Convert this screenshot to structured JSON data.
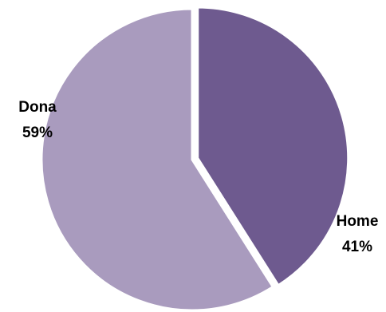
{
  "chart_data": {
    "type": "pie",
    "categories": [
      "Home",
      "Dona"
    ],
    "values": [
      41,
      59
    ],
    "value_labels": [
      "41%",
      "59%"
    ],
    "colors": [
      "#6e5a8f",
      "#a99bbe"
    ]
  }
}
